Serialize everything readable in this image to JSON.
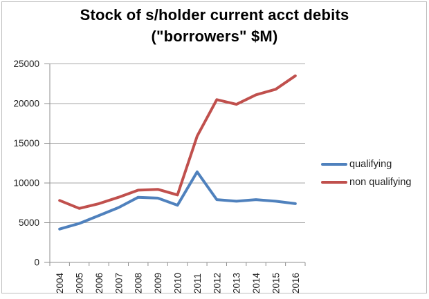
{
  "chart_data": {
    "type": "line",
    "title": "Stock of s/holder current acct debits (\"borrowers\" $M)",
    "title_lines": [
      "Stock of s/holder current acct debits",
      "(\"borrowers\" $M)"
    ],
    "categories": [
      "2004",
      "2005",
      "2006",
      "2007",
      "2008",
      "2009",
      "2010",
      "2011",
      "2012",
      "2013",
      "2014",
      "2015",
      "2016"
    ],
    "series": [
      {
        "name": "qualifying",
        "color": "#4F81BD",
        "values": [
          4200,
          4900,
          5900,
          6900,
          8200,
          8100,
          7200,
          11400,
          7900,
          7700,
          7900,
          7700,
          7400
        ]
      },
      {
        "name": "non qualifying",
        "color": "#C0504D",
        "values": [
          7800,
          6800,
          7400,
          8200,
          9100,
          9200,
          8500,
          15900,
          20500,
          19900,
          21100,
          21800,
          23500
        ]
      }
    ],
    "xlabel": "",
    "ylabel": "",
    "ylim": [
      0,
      25000
    ],
    "ytick_step": 5000,
    "ytick_labels": [
      "0",
      "5000",
      "10000",
      "15000",
      "20000",
      "25000"
    ],
    "grid": true,
    "legend_position": "right",
    "x_tick_label_rotation_deg": -90
  },
  "colors": {
    "background": "#ffffff",
    "frame_border": "#bdbdbd",
    "gridline": "#a6a6a6",
    "axis": "#8f8f8f",
    "label_text": "#1f1f1f",
    "title_text": "#000000"
  }
}
